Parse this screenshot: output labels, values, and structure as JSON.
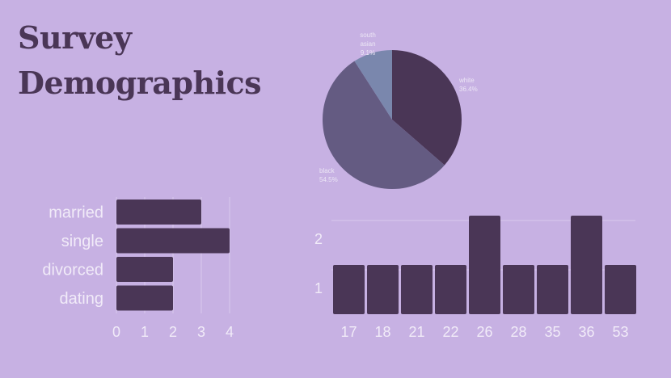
{
  "title_line1": "Survey",
  "title_line2": "Demographics",
  "colors": {
    "background": "#c7b1e3",
    "bar": "#4a3656",
    "title": "#4a3656"
  },
  "chart_data": [
    {
      "type": "pie",
      "slices": [
        {
          "label": "white",
          "percent_label": "36.4%",
          "value": 36.4,
          "color": "#4a3656"
        },
        {
          "label": "black",
          "percent_label": "54.5%",
          "value": 54.5,
          "color": "#645b82"
        },
        {
          "label": "south asian",
          "percent_label": "9.1%",
          "value": 9.1,
          "color": "#7a87ad"
        }
      ]
    },
    {
      "type": "bar",
      "orientation": "horizontal",
      "categories": [
        "married",
        "single",
        "divorced",
        "dating"
      ],
      "values": [
        3,
        4,
        2,
        2
      ],
      "xticks": [
        "0",
        "1",
        "2",
        "3",
        "4"
      ],
      "xlim": [
        0,
        4
      ],
      "grid": true
    },
    {
      "type": "bar",
      "orientation": "vertical",
      "categories": [
        "17",
        "18",
        "21",
        "22",
        "26",
        "28",
        "35",
        "36",
        "53"
      ],
      "values": [
        1,
        1,
        1,
        1,
        2,
        1,
        1,
        2,
        1
      ],
      "yticks": [
        "1",
        "2"
      ],
      "ylim": [
        0,
        2
      ],
      "grid": true
    }
  ]
}
